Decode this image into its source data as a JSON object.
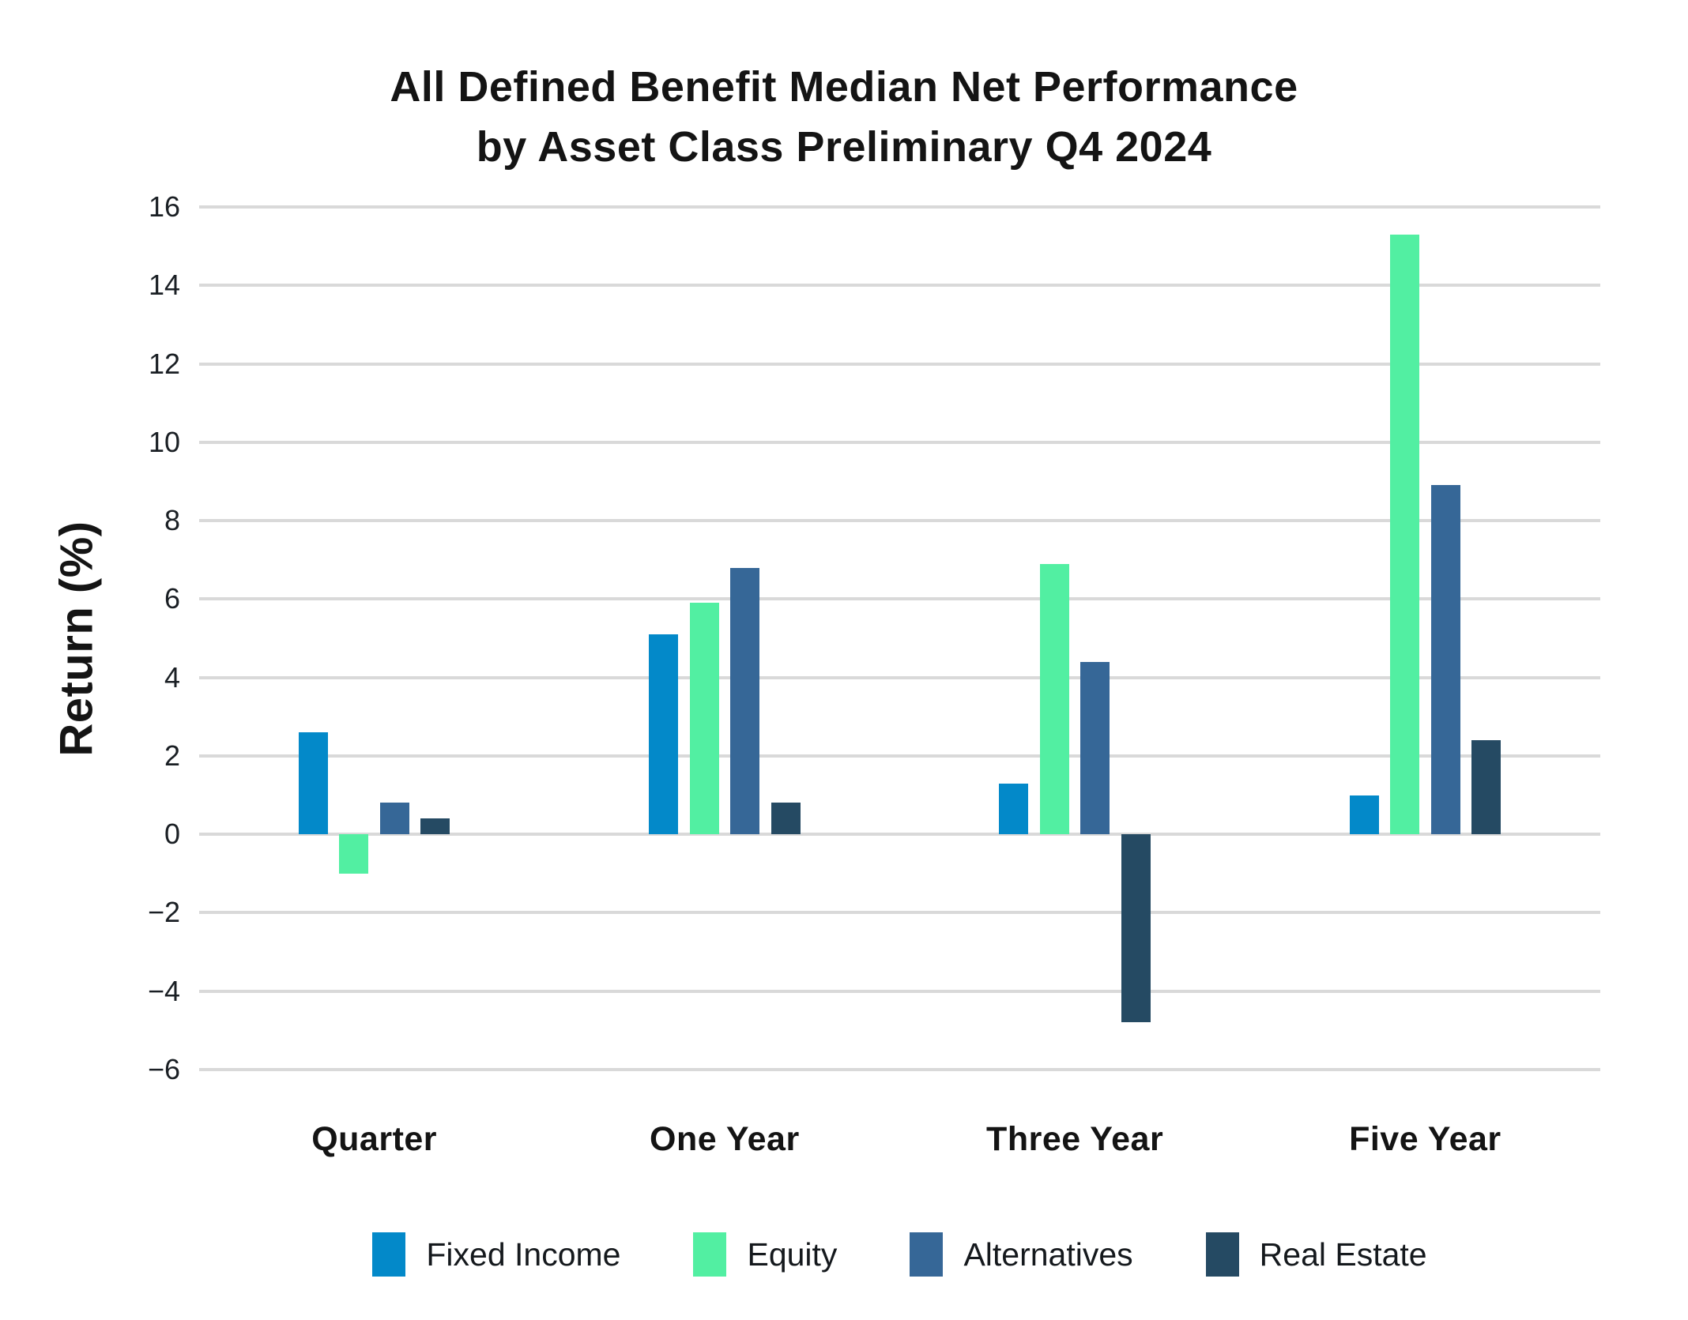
{
  "page": {
    "title_line1": "All Defined Benefit Median Net Performance",
    "title_line2": "by Asset Class Preliminary Q4 2024"
  },
  "chart_data": {
    "type": "bar",
    "title": "All Defined Benefit Median Net Performance by Asset Class Preliminary Q4 2024",
    "xlabel": "",
    "ylabel": "Return (%)",
    "ylim": [
      -6,
      16
    ],
    "ytick_step": 2,
    "ytick_labels": [
      "16",
      "14",
      "12",
      "10",
      "8",
      "6",
      "4",
      "2",
      "0",
      "−2",
      "−4",
      "−6"
    ],
    "grid": true,
    "gridline_color": "#d9d9d9",
    "legend_position": "bottom",
    "categories": [
      "Quarter",
      "One Year",
      "Three Year",
      "Five Year"
    ],
    "series": [
      {
        "name": "Fixed Income",
        "color": "#0389c9",
        "values": [
          2.6,
          5.1,
          1.3,
          1.0
        ]
      },
      {
        "name": "Equity",
        "color": "#52efa2",
        "values": [
          -1.0,
          5.9,
          6.9,
          15.3
        ]
      },
      {
        "name": "Alternatives",
        "color": "#366797",
        "values": [
          0.8,
          6.8,
          4.4,
          8.9
        ]
      },
      {
        "name": "Real Estate",
        "color": "#254a63",
        "values": [
          0.4,
          0.8,
          -4.8,
          2.4
        ]
      }
    ]
  }
}
